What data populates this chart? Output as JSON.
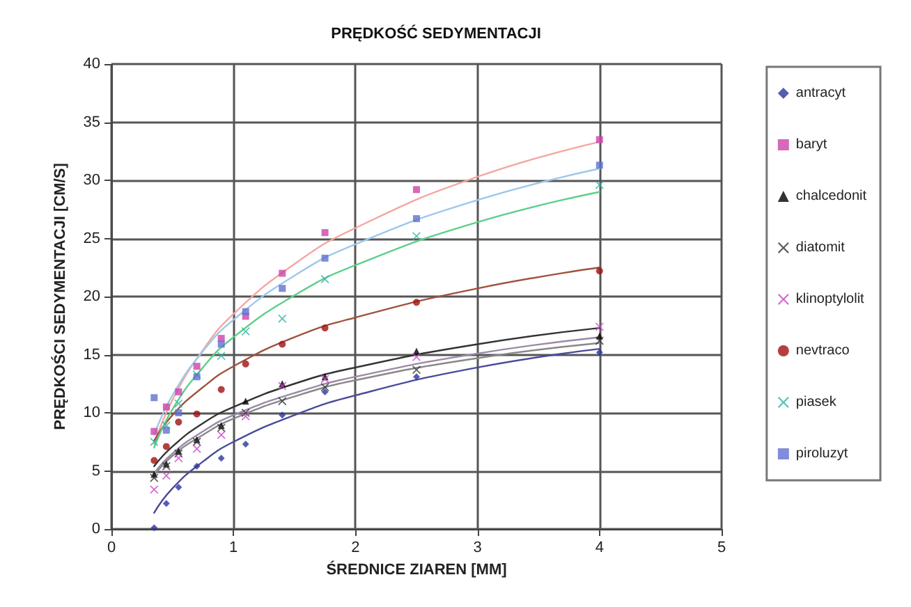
{
  "chart_data": {
    "type": "scatter",
    "title": "PRĘDKOŚĆ SEDYMENTACJI",
    "xlabel": "ŚREDNICE ZIAREN [MM]",
    "ylabel": "PRĘDKOŚCI SEDYMENTACJI [CM/S]",
    "x": [
      0.35,
      0.45,
      0.55,
      0.7,
      0.9,
      1.1,
      1.4,
      1.75,
      2.5,
      4.0
    ],
    "xlim": [
      0,
      5
    ],
    "xticks": [
      0,
      1,
      2,
      3,
      4,
      5
    ],
    "ylim": [
      0,
      40
    ],
    "yticks": [
      0,
      5,
      10,
      15,
      20,
      25,
      30,
      35,
      40
    ],
    "grid": true,
    "legend": "right",
    "series": [
      {
        "name": "antracyt",
        "color": "#2b35a0",
        "marker": "diamond",
        "values": [
          0.1,
          2.2,
          3.6,
          5.4,
          6.1,
          7.3,
          9.8,
          11.8,
          13.1,
          15.2
        ]
      },
      {
        "name": "baryt",
        "color": "#cc44aa",
        "marker": "square",
        "values": [
          8.4,
          10.5,
          11.8,
          14.0,
          16.4,
          18.3,
          22.0,
          25.5,
          29.2,
          33.5
        ]
      },
      {
        "name": "chalcedonit",
        "color": "#000000",
        "marker": "triangle",
        "values": [
          4.7,
          5.6,
          6.7,
          7.7,
          8.9,
          11.0,
          12.5,
          13.1,
          15.3,
          16.6
        ]
      },
      {
        "name": "diatomit",
        "color": "#333333",
        "marker": "cross",
        "values": [
          4.4,
          5.4,
          6.5,
          7.5,
          8.7,
          10.0,
          11.0,
          12.2,
          13.7,
          16.2
        ]
      },
      {
        "name": "klinoptylolit",
        "color": "#cc44cc",
        "marker": "cross",
        "values": [
          3.4,
          4.6,
          6.1,
          6.9,
          8.1,
          9.7,
          12.3,
          12.9,
          14.8,
          17.4
        ]
      },
      {
        "name": "nevtraco",
        "color": "#a01010",
        "marker": "circle",
        "values": [
          5.9,
          7.1,
          9.2,
          9.9,
          12.0,
          14.2,
          15.9,
          17.3,
          19.5,
          22.2
        ]
      },
      {
        "name": "piasek",
        "color": "#30b0a0",
        "marker": "cross",
        "values": [
          7.5,
          8.9,
          10.8,
          13.3,
          14.9,
          17.0,
          18.1,
          21.5,
          25.2,
          29.6
        ]
      },
      {
        "name": "piroluzyt",
        "color": "#6070d0",
        "marker": "square",
        "values": [
          11.3,
          8.5,
          10.0,
          13.1,
          15.9,
          18.7,
          20.7,
          23.3,
          26.7,
          31.3
        ]
      },
      {
        "type": "line",
        "color": "#4a4a9a",
        "x": [
          0.35,
          0.5,
          0.75,
          1,
          1.5,
          2,
          3,
          4
        ],
        "values": [
          1.4,
          3.5,
          5.8,
          7.5,
          9.8,
          11.5,
          13.9,
          15.5
        ]
      },
      {
        "type": "line",
        "color": "#f4a6a0",
        "x": [
          0.35,
          0.5,
          0.75,
          1,
          1.5,
          2,
          3,
          4
        ],
        "values": [
          7.3,
          11.1,
          15.4,
          18.5,
          22.8,
          25.9,
          30.3,
          33.3
        ]
      },
      {
        "type": "line",
        "color": "#333333",
        "x": [
          0.35,
          0.5,
          0.75,
          1,
          1.5,
          2,
          3,
          4
        ],
        "values": [
          5.4,
          7.1,
          9.1,
          10.5,
          12.5,
          13.9,
          15.9,
          17.3
        ]
      },
      {
        "type": "line",
        "color": "#888888",
        "x": [
          0.35,
          0.5,
          0.75,
          1,
          1.5,
          2,
          3,
          4
        ],
        "values": [
          4.6,
          6.3,
          8.1,
          9.5,
          11.4,
          12.8,
          14.7,
          16.0
        ]
      },
      {
        "type": "line",
        "color": "#9a8aa8",
        "x": [
          0.35,
          0.5,
          0.75,
          1,
          1.5,
          2,
          3,
          4
        ],
        "values": [
          4.8,
          6.5,
          8.4,
          9.8,
          11.7,
          13.1,
          15.1,
          16.5
        ]
      },
      {
        "type": "line",
        "color": "#a0523c",
        "x": [
          0.35,
          0.5,
          0.75,
          1,
          1.5,
          2,
          3,
          4
        ],
        "values": [
          7.6,
          9.8,
          12.2,
          14.0,
          16.5,
          18.2,
          20.7,
          22.5
        ]
      },
      {
        "type": "line",
        "color": "#5ccf8a",
        "x": [
          0.35,
          0.5,
          0.75,
          1,
          1.5,
          2,
          3,
          4
        ],
        "values": [
          7.0,
          10.3,
          13.9,
          16.5,
          20.1,
          22.7,
          26.4,
          29.0
        ]
      },
      {
        "type": "line",
        "color": "#9cc8ec",
        "x": [
          0.35,
          0.5,
          0.75,
          1,
          1.5,
          2,
          3,
          4
        ],
        "values": [
          8.1,
          11.5,
          15.3,
          18.0,
          21.8,
          24.5,
          28.3,
          31.0
        ]
      }
    ]
  }
}
